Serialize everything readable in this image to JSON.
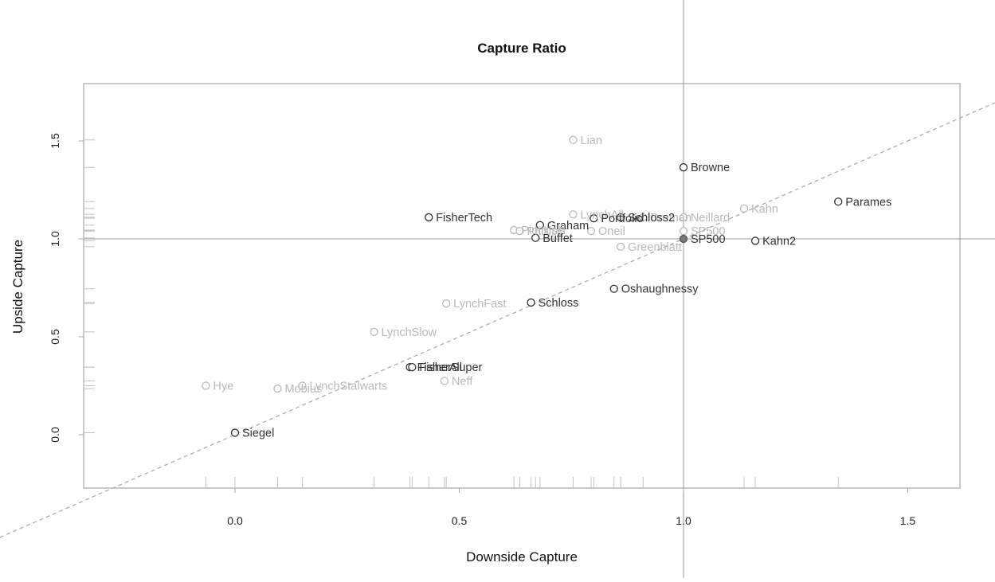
{
  "chart_data": {
    "type": "scatter",
    "title": "Capture Ratio",
    "xlabel": "Downside Capture",
    "ylabel": "Upside Capture",
    "xlim": [
      -0.33,
      1.6
    ],
    "ylim": [
      -0.26,
      1.8
    ],
    "x_ticks": [
      "0.0",
      "0.5",
      "1.0",
      "1.5"
    ],
    "y_ticks": [
      "0.0",
      "0.5",
      "1.0",
      "1.5"
    ],
    "reference_lines": {
      "vertical_x": 1.0,
      "horizontal_y": 1.0,
      "diagonal_slope": 1.0,
      "diagonal_intercept": 0.0
    },
    "rugs": {
      "x_axis": true,
      "y_axis": true
    },
    "colors": {
      "dark": "#333333",
      "light": "#b9b9b9",
      "frame": "#a6a6a6",
      "rug": "#c4c4c4"
    },
    "points": [
      {
        "label": "Lian",
        "x": 0.754,
        "y": 1.505,
        "emphasis": "light"
      },
      {
        "label": "Browne",
        "x": 1.0,
        "y": 1.365,
        "emphasis": "dark"
      },
      {
        "label": "Parames",
        "x": 1.345,
        "y": 1.19,
        "emphasis": "dark"
      },
      {
        "label": "Kahn",
        "x": 1.135,
        "y": 1.155,
        "emphasis": "light"
      },
      {
        "label": "LynchAll",
        "x": 0.754,
        "y": 1.125,
        "emphasis": "light"
      },
      {
        "label": "Dreman",
        "x": 0.91,
        "y": 1.11,
        "emphasis": "light"
      },
      {
        "label": "Neillard",
        "x": 1.0,
        "y": 1.11,
        "emphasis": "light"
      },
      {
        "label": "FisherTech",
        "x": 0.432,
        "y": 1.11,
        "emphasis": "dark"
      },
      {
        "label": "Portfolio",
        "x": 0.8,
        "y": 1.105,
        "emphasis": "dark"
      },
      {
        "label": "Schloss2",
        "x": 0.86,
        "y": 1.11,
        "emphasis": "dark"
      },
      {
        "label": "Graham",
        "x": 0.68,
        "y": 1.07,
        "emphasis": "dark"
      },
      {
        "label": "Piotroski",
        "x": 0.622,
        "y": 1.045,
        "emphasis": "light"
      },
      {
        "label": "PhillipS",
        "x": 0.635,
        "y": 1.04,
        "emphasis": "light"
      },
      {
        "label": "Oneil",
        "x": 0.794,
        "y": 1.04,
        "emphasis": "light"
      },
      {
        "label": "SP500",
        "x": 1.0,
        "y": 1.04,
        "emphasis": "light"
      },
      {
        "label": "Buffet",
        "x": 0.67,
        "y": 1.005,
        "emphasis": "dark"
      },
      {
        "label": "SP500",
        "x": 1.0,
        "y": 1.0,
        "emphasis": "dark",
        "filled": true
      },
      {
        "label": "Kahn2",
        "x": 1.16,
        "y": 0.99,
        "emphasis": "dark"
      },
      {
        "label": "Greenblatt",
        "x": 0.86,
        "y": 0.96,
        "emphasis": "light"
      },
      {
        "label": "Oshaughnessy",
        "x": 0.845,
        "y": 0.745,
        "emphasis": "dark"
      },
      {
        "label": "LynchFast",
        "x": 0.471,
        "y": 0.67,
        "emphasis": "light"
      },
      {
        "label": "Schloss",
        "x": 0.66,
        "y": 0.675,
        "emphasis": "dark"
      },
      {
        "label": "LynchSlow",
        "x": 0.31,
        "y": 0.525,
        "emphasis": "light"
      },
      {
        "label": "FisherAll",
        "x": 0.39,
        "y": 0.345,
        "emphasis": "dark"
      },
      {
        "label": "FisherSuper",
        "x": 0.395,
        "y": 0.345,
        "emphasis": "dark"
      },
      {
        "label": "Neff",
        "x": 0.467,
        "y": 0.275,
        "emphasis": "light"
      },
      {
        "label": "Hye",
        "x": -0.065,
        "y": 0.25,
        "emphasis": "light"
      },
      {
        "label": "Mobius",
        "x": 0.095,
        "y": 0.235,
        "emphasis": "light"
      },
      {
        "label": "LynchStalwarts",
        "x": 0.15,
        "y": 0.25,
        "emphasis": "light"
      },
      {
        "label": "Siegel",
        "x": 0.0,
        "y": 0.01,
        "emphasis": "dark"
      }
    ]
  }
}
